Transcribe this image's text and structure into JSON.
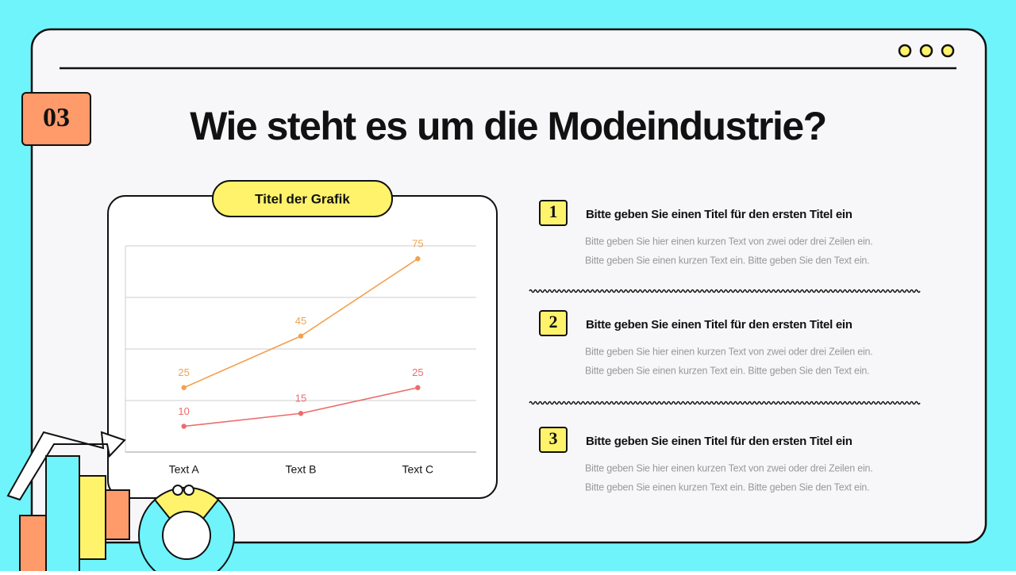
{
  "slide": {
    "number": "03",
    "title": "Wie steht es um die Modeindustrie?",
    "items": [
      {
        "number": "1",
        "title": "Bitte geben Sie einen Titel für den ersten Titel ein",
        "text": [
          "Bitte geben Sie hier einen kurzen Text von zwei oder drei Zeilen ein.",
          "Bitte geben Sie einen kurzen Text ein. Bitte geben Sie den Text ein."
        ]
      },
      {
        "number": "2",
        "title": "Bitte geben Sie einen Titel für den ersten Titel ein",
        "text": [
          "Bitte geben Sie hier einen kurzen Text von zwei oder drei Zeilen ein.",
          "Bitte geben Sie einen kurzen Text ein. Bitte geben Sie den Text ein."
        ]
      },
      {
        "number": "3",
        "title": "Bitte geben Sie einen Titel für den ersten Titel ein",
        "text": [
          "Bitte geben Sie hier einen kurzen Text von zwei oder drei Zeilen ein.",
          "Bitte geben Sie einen kurzen Text ein. Bitte geben Sie den Text ein."
        ]
      }
    ]
  },
  "chart_data": {
    "type": "line",
    "title": "Titel der Grafik",
    "categories": [
      "Text A",
      "Text B",
      "Text C"
    ],
    "series": [
      {
        "color": "#f2a14e",
        "values": [
          25,
          45,
          75
        ]
      },
      {
        "color": "#ee6b6b",
        "values": [
          10,
          15,
          25
        ]
      }
    ],
    "ylim": [
      0,
      80
    ],
    "yticks": [
      0,
      20,
      40,
      60,
      80
    ],
    "grid": true
  }
}
